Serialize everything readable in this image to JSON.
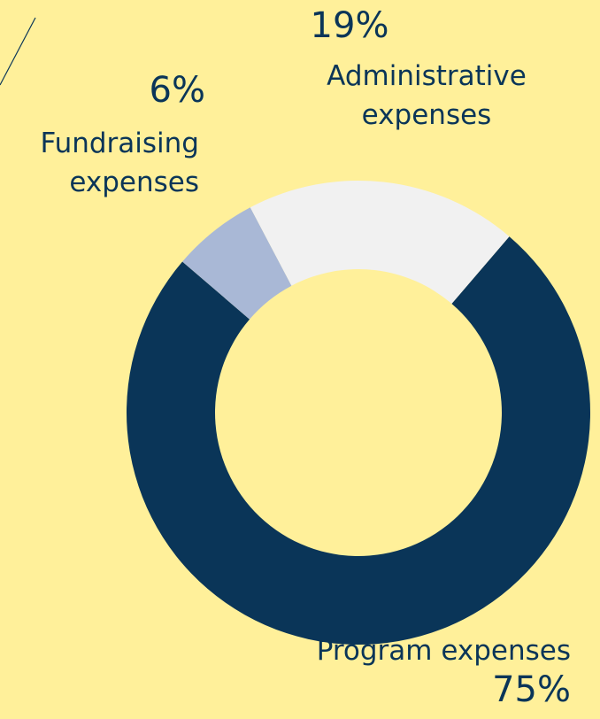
{
  "chart_data": {
    "type": "donut",
    "categories": [
      "Program expenses",
      "Fundraising expenses",
      "Administrative expenses"
    ],
    "values": [
      75,
      6,
      19
    ],
    "value_labels": [
      "75%",
      "6%",
      "19%"
    ],
    "colors": [
      "#0a3558",
      "#a9b8d6",
      "#f1f1f1"
    ]
  }
}
